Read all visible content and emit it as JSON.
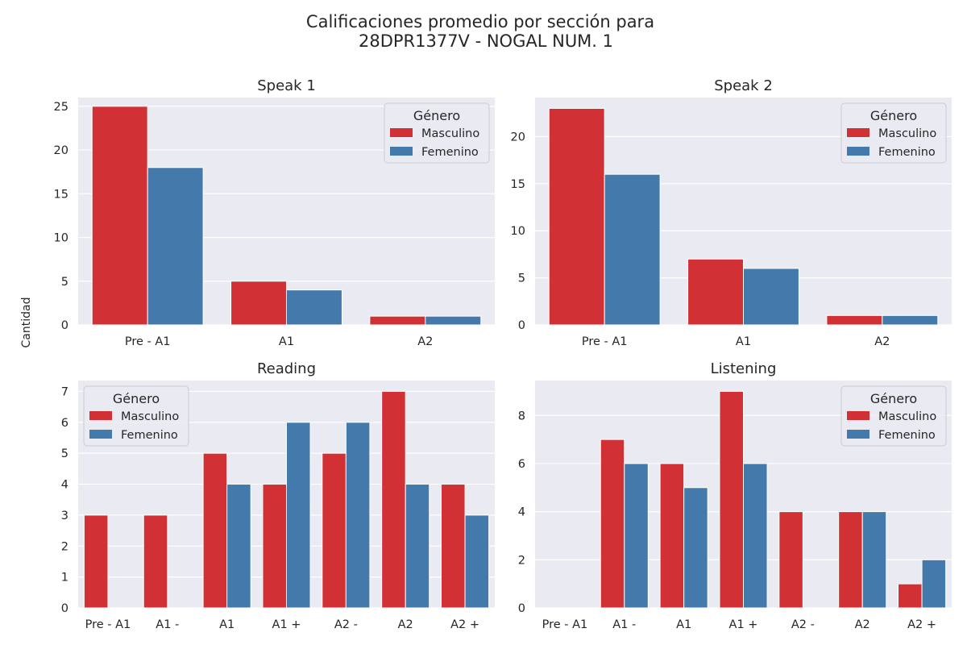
{
  "figure": {
    "title_line1": "Calificaciones promedio por sección para",
    "title_line2": "28DPR1377V - NOGAL NUM. 1",
    "ylabel": "Cantidad"
  },
  "colors": {
    "Masculino": "#d13035",
    "Femenino": "#4479ac",
    "panel_bg": "#eaeaf2",
    "grid": "#ffffff"
  },
  "chart_data": [
    {
      "type": "bar",
      "title": "Speak 1",
      "categories": [
        "Pre - A1",
        "A1",
        "A2"
      ],
      "series": [
        {
          "name": "Masculino",
          "values": [
            25,
            5,
            1
          ]
        },
        {
          "name": "Femenino",
          "values": [
            18,
            4,
            1
          ]
        }
      ],
      "ylim": [
        0,
        26
      ],
      "yticks": [
        0,
        5,
        10,
        15,
        20,
        25
      ],
      "legend": {
        "title": "Género",
        "placement": "upper right"
      },
      "grid": true
    },
    {
      "type": "bar",
      "title": "Speak 2",
      "categories": [
        "Pre - A1",
        "A1",
        "A2"
      ],
      "series": [
        {
          "name": "Masculino",
          "values": [
            23,
            7,
            1
          ]
        },
        {
          "name": "Femenino",
          "values": [
            16,
            6,
            1
          ]
        }
      ],
      "ylim": [
        0,
        24.15
      ],
      "yticks": [
        0,
        5,
        10,
        15,
        20
      ],
      "legend": {
        "title": "Género",
        "placement": "upper right"
      },
      "grid": true
    },
    {
      "type": "bar",
      "title": "Reading",
      "categories": [
        "Pre - A1",
        "A1 -",
        "A1",
        "A1 +",
        "A2 -",
        "A2",
        "A2 +"
      ],
      "series": [
        {
          "name": "Masculino",
          "values": [
            3,
            3,
            5,
            4,
            5,
            7,
            4
          ]
        },
        {
          "name": "Femenino",
          "values": [
            0,
            0,
            4,
            6,
            6,
            4,
            3
          ]
        }
      ],
      "ylim": [
        0,
        7.35
      ],
      "yticks": [
        0,
        1,
        2,
        3,
        4,
        5,
        6,
        7
      ],
      "legend": {
        "title": "Género",
        "placement": "upper left"
      },
      "grid": true
    },
    {
      "type": "bar",
      "title": "Listening",
      "categories": [
        "Pre - A1",
        "A1 -",
        "A1",
        "A1 +",
        "A2 -",
        "A2",
        "A2 +"
      ],
      "series": [
        {
          "name": "Masculino",
          "values": [
            0,
            7,
            6,
            9,
            4,
            4,
            1
          ]
        },
        {
          "name": "Femenino",
          "values": [
            0,
            6,
            5,
            6,
            0,
            4,
            2
          ]
        }
      ],
      "ylim": [
        0,
        9.45
      ],
      "yticks": [
        0,
        2,
        4,
        6,
        8
      ],
      "legend": {
        "title": "Género",
        "placement": "upper right"
      },
      "grid": true
    }
  ]
}
